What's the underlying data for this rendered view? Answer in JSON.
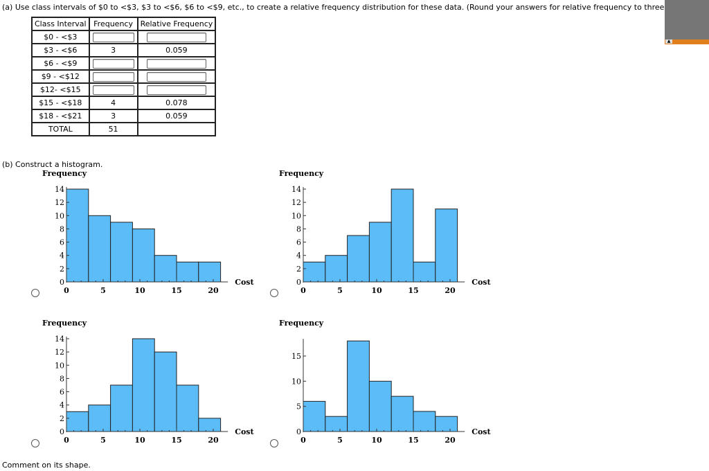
{
  "part_a": {
    "prompt": "(a) Use class intervals of $0 to <$3, $3 to <$6, $6 to <$9, etc., to create a relative frequency distribution for these data. (Round your answers for relative frequency to three decimal places.)",
    "headers": [
      "Class Interval",
      "Frequency",
      "Relative Frequency"
    ],
    "rows": [
      {
        "interval": "$0 - <$3",
        "frequency": "",
        "relative": ""
      },
      {
        "interval": "$3 - <$6",
        "frequency": "3",
        "relative": "0.059"
      },
      {
        "interval": "$6 - <$9",
        "frequency": "",
        "relative": ""
      },
      {
        "interval": "$9 - <$12",
        "frequency": "",
        "relative": ""
      },
      {
        "interval": "$12- <$15",
        "frequency": "",
        "relative": ""
      },
      {
        "interval": "$15 - <$18",
        "frequency": "4",
        "relative": "0.078"
      },
      {
        "interval": "$18 - <$21",
        "frequency": "3",
        "relative": "0.059"
      },
      {
        "interval": "TOTAL",
        "frequency": "51",
        "relative": ""
      }
    ]
  },
  "part_b": {
    "prompt": "(b) Construct a histogram."
  },
  "comment": "Comment on its shape.",
  "colors": {
    "bar": "#5bbcf8",
    "scrollbar": "#e07f1c",
    "panel": "#767676"
  },
  "chart_data": [
    {
      "type": "bar",
      "ylabel": "Frequency",
      "xlabel": "Cost",
      "bin_edges": [
        0,
        3,
        6,
        9,
        12,
        15,
        18,
        21
      ],
      "values": [
        14,
        10,
        9,
        8,
        4,
        3,
        3
      ],
      "xticks": [
        0,
        5,
        10,
        15,
        20
      ],
      "yticks": [
        0,
        2,
        4,
        6,
        8,
        10,
        12,
        14
      ],
      "ylim": [
        0,
        14
      ]
    },
    {
      "type": "bar",
      "ylabel": "Frequency",
      "xlabel": "Cost",
      "bin_edges": [
        0,
        3,
        6,
        9,
        12,
        15,
        18,
        21
      ],
      "values": [
        3,
        4,
        7,
        9,
        14,
        3,
        11
      ],
      "xticks": [
        0,
        5,
        10,
        15,
        20
      ],
      "yticks": [
        0,
        2,
        4,
        6,
        8,
        10,
        12,
        14
      ],
      "ylim": [
        0,
        14
      ]
    },
    {
      "type": "bar",
      "ylabel": "Frequency",
      "xlabel": "Cost",
      "bin_edges": [
        0,
        3,
        6,
        9,
        12,
        15,
        18,
        21
      ],
      "values": [
        3,
        4,
        7,
        14,
        12,
        7,
        2
      ],
      "xticks": [
        0,
        5,
        10,
        15,
        20
      ],
      "yticks": [
        0,
        2,
        4,
        6,
        8,
        10,
        12,
        14
      ],
      "ylim": [
        0,
        14
      ]
    },
    {
      "type": "bar",
      "ylabel": "Frequency",
      "xlabel": "Cost",
      "bin_edges": [
        0,
        3,
        6,
        9,
        12,
        15,
        18,
        21
      ],
      "values": [
        6,
        3,
        18,
        10,
        7,
        4,
        3
      ],
      "xticks": [
        0,
        5,
        10,
        15,
        20
      ],
      "yticks": [
        0,
        5,
        10,
        15
      ],
      "ylim": [
        0,
        18
      ]
    }
  ]
}
